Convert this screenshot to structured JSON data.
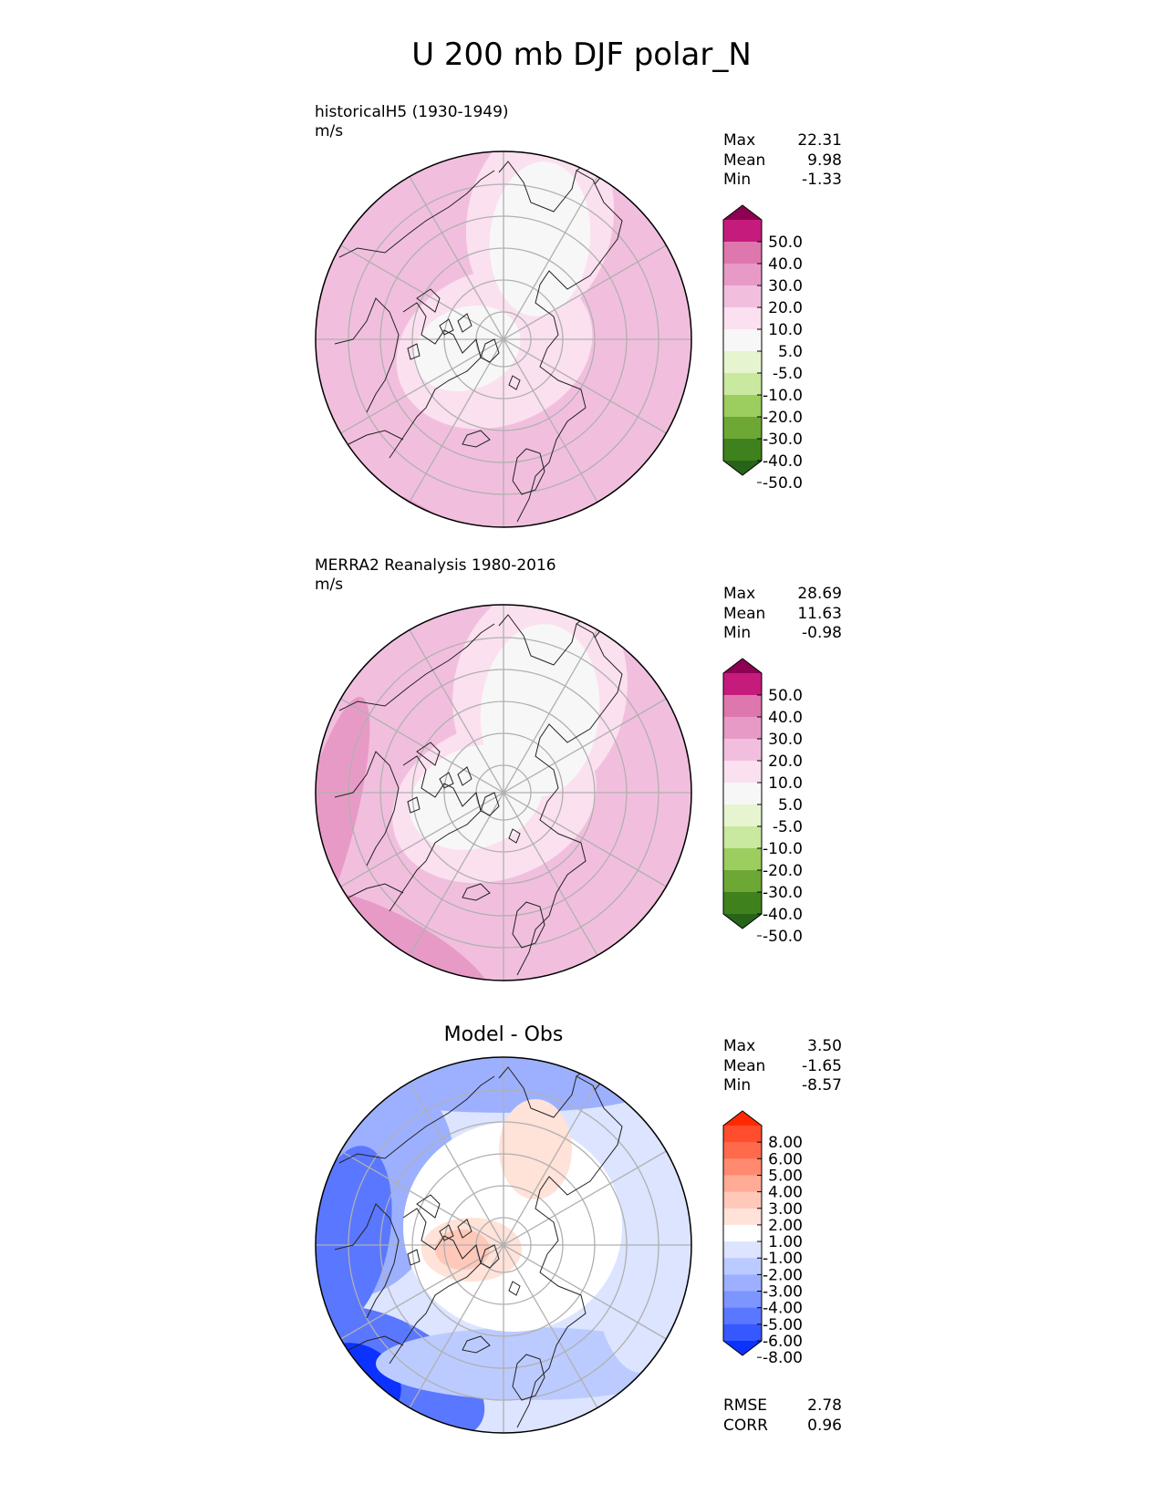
{
  "title": "U 200 mb DJF polar_N",
  "panels": [
    {
      "label": "historicalH5 (1930-1949)",
      "units": "m/s",
      "stats": [
        {
          "label": "Max",
          "value": "22.31"
        },
        {
          "label": "Mean",
          "value": "9.98"
        },
        {
          "label": "Min",
          "value": "-1.33"
        }
      ],
      "colorbar": {
        "ticks": [
          "50.0",
          "40.0",
          "30.0",
          "20.0",
          "10.0",
          "5.0",
          "-5.0",
          "-10.0",
          "-20.0",
          "-30.0",
          "-40.0",
          "-50.0"
        ],
        "colors": [
          "#8e0152",
          "#c51b7d",
          "#de77ae",
          "#e89ac7",
          "#f1bfdd",
          "#fbe0ef",
          "#f7f7f7",
          "#e6f5d0",
          "#c9e8a0",
          "#9ccd5f",
          "#6da834",
          "#3f821d",
          "#276419"
        ]
      }
    },
    {
      "label": "MERRA2 Reanalysis 1980-2016",
      "units": "m/s",
      "stats": [
        {
          "label": "Max",
          "value": "28.69"
        },
        {
          "label": "Mean",
          "value": "11.63"
        },
        {
          "label": "Min",
          "value": "-0.98"
        }
      ],
      "colorbar": {
        "ticks": [
          "50.0",
          "40.0",
          "30.0",
          "20.0",
          "10.0",
          "5.0",
          "-5.0",
          "-10.0",
          "-20.0",
          "-30.0",
          "-40.0",
          "-50.0"
        ],
        "colors": [
          "#8e0152",
          "#c51b7d",
          "#de77ae",
          "#e89ac7",
          "#f1bfdd",
          "#fbe0ef",
          "#f7f7f7",
          "#e6f5d0",
          "#c9e8a0",
          "#9ccd5f",
          "#6da834",
          "#3f821d",
          "#276419"
        ]
      }
    },
    {
      "title": "Model - Obs",
      "stats": [
        {
          "label": "Max",
          "value": "3.50"
        },
        {
          "label": "Mean",
          "value": "-1.65"
        },
        {
          "label": "Min",
          "value": "-8.57"
        }
      ],
      "extra_stats": [
        {
          "label": "RMSE",
          "value": "2.78"
        },
        {
          "label": "CORR",
          "value": "0.96"
        }
      ],
      "colorbar": {
        "ticks": [
          "8.00",
          "6.00",
          "5.00",
          "4.00",
          "3.00",
          "2.00",
          "1.00",
          "-1.00",
          "-2.00",
          "-3.00",
          "-4.00",
          "-5.00",
          "-6.00",
          "-8.00"
        ],
        "colors": [
          "#ff2a00",
          "#ff4d2e",
          "#ff6a4d",
          "#ff8a70",
          "#ffab95",
          "#ffc8b8",
          "#ffe2d8",
          "#ffffff",
          "#dce4ff",
          "#bccbff",
          "#9cb0ff",
          "#7c95ff",
          "#5a77ff",
          "#3658ff",
          "#0b32ff"
        ]
      }
    }
  ]
}
